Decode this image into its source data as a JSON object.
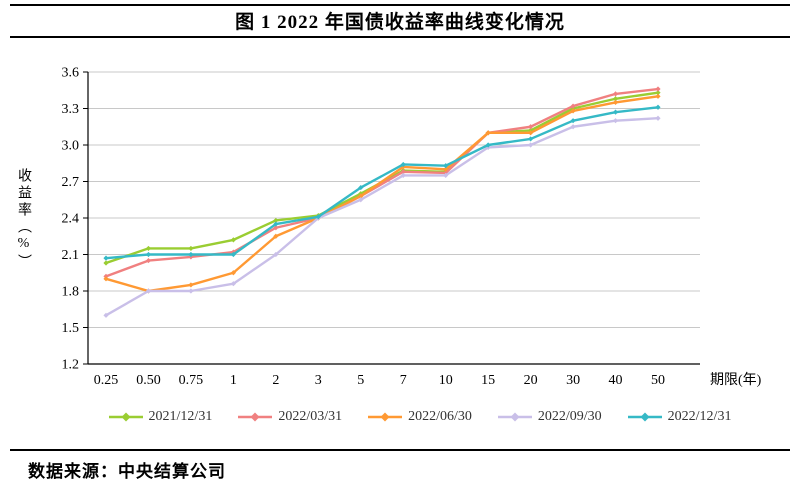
{
  "title": "图 1 2022 年国债收益率曲线变化情况",
  "source": "数据来源：中央结算公司",
  "chart_data": {
    "type": "line",
    "x": [
      "0.25",
      "0.50",
      "0.75",
      "1",
      "2",
      "3",
      "5",
      "7",
      "10",
      "15",
      "20",
      "30",
      "40",
      "50"
    ],
    "xlabel": "期限(年)",
    "ylabel": "收益率（%）",
    "ylim": [
      1.2,
      3.6
    ],
    "ytick_step": 0.3,
    "yticks": [
      "1.2",
      "1.5",
      "1.8",
      "2.1",
      "2.4",
      "2.7",
      "3.0",
      "3.3",
      "3.6"
    ],
    "grid": true,
    "legend_position": "bottom",
    "series": [
      {
        "name": "2021/12/31",
        "color": "#9ACD32",
        "values": [
          2.03,
          2.15,
          2.15,
          2.22,
          2.38,
          2.42,
          2.6,
          2.79,
          2.78,
          3.1,
          3.12,
          3.3,
          3.38,
          3.43
        ]
      },
      {
        "name": "2022/03/31",
        "color": "#F08080",
        "values": [
          1.92,
          2.05,
          2.08,
          2.12,
          2.32,
          2.4,
          2.58,
          2.78,
          2.77,
          3.1,
          3.15,
          3.32,
          3.42,
          3.46
        ]
      },
      {
        "name": "2022/06/30",
        "color": "#FF9933",
        "values": [
          1.9,
          1.8,
          1.85,
          1.95,
          2.25,
          2.4,
          2.58,
          2.82,
          2.8,
          3.1,
          3.1,
          3.28,
          3.35,
          3.4
        ]
      },
      {
        "name": "2022/09/30",
        "color": "#C9BFE8",
        "values": [
          1.6,
          1.8,
          1.8,
          1.86,
          2.1,
          2.4,
          2.55,
          2.75,
          2.75,
          2.98,
          3.0,
          3.15,
          3.2,
          3.22
        ]
      },
      {
        "name": "2022/12/31",
        "color": "#35B9C6",
        "values": [
          2.07,
          2.1,
          2.1,
          2.1,
          2.35,
          2.41,
          2.65,
          2.84,
          2.83,
          3.0,
          3.05,
          3.2,
          3.27,
          3.31
        ]
      }
    ]
  }
}
